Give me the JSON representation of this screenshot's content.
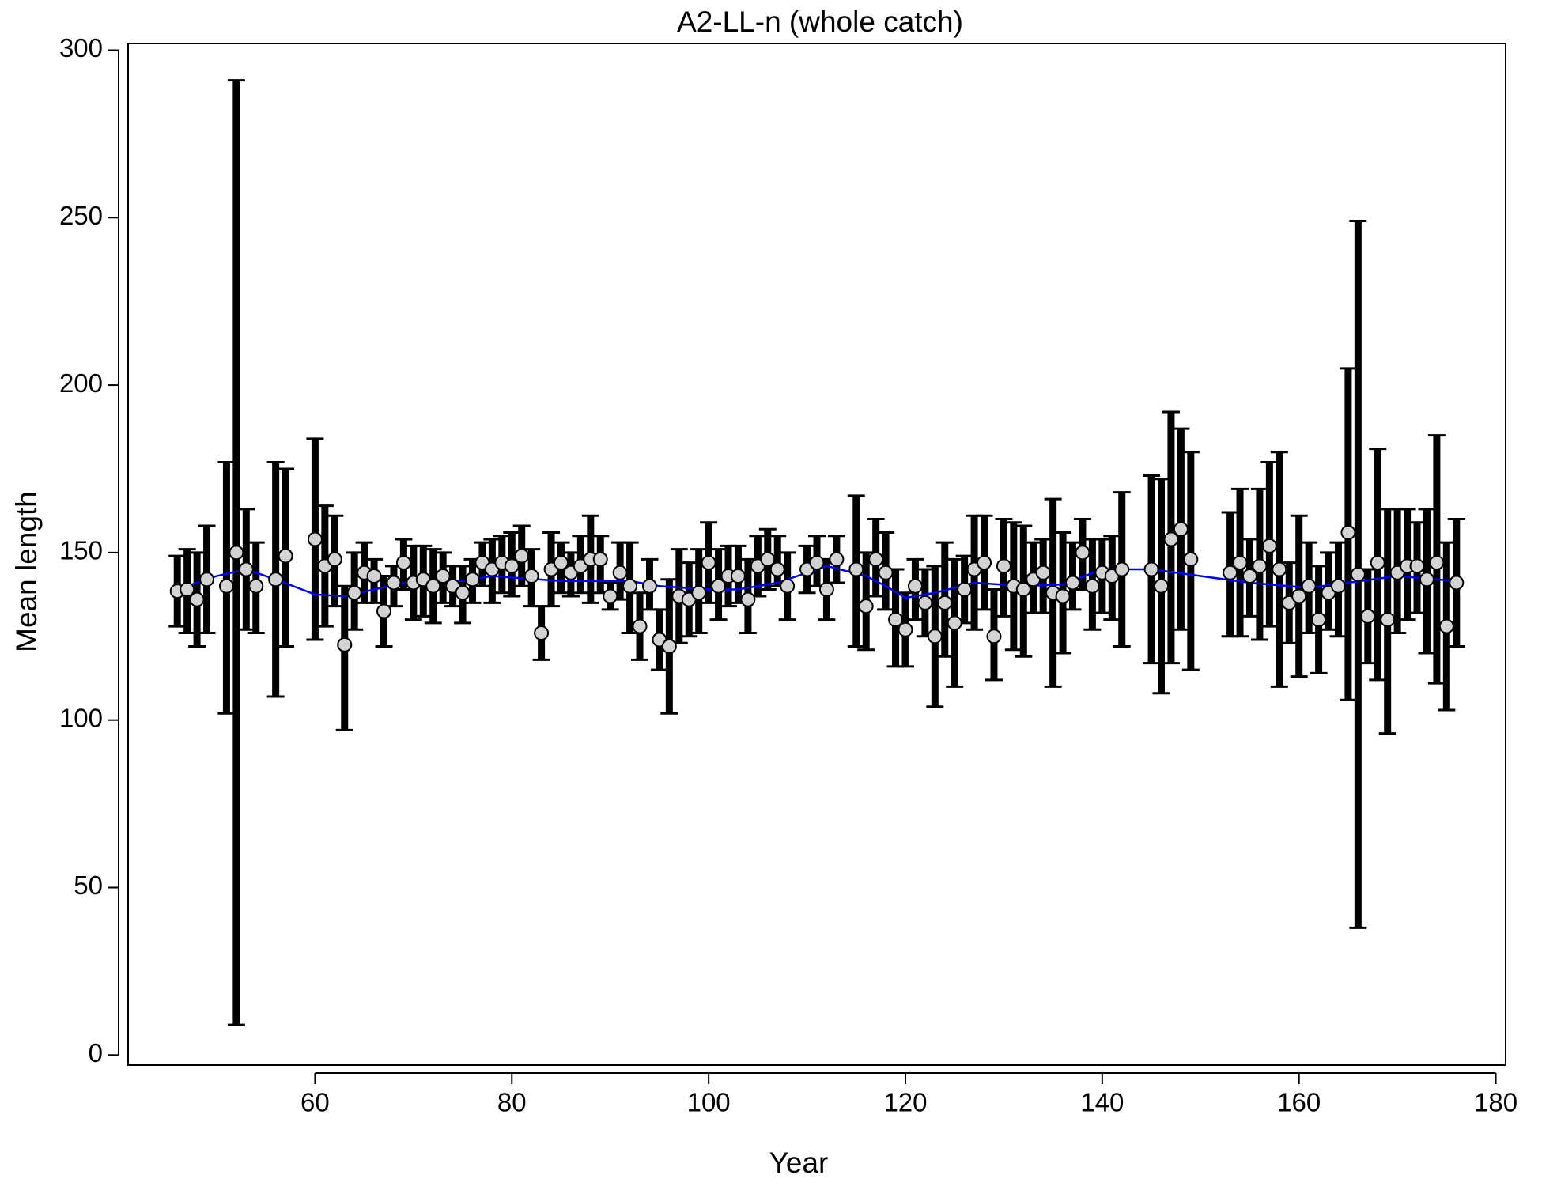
{
  "chart_data": {
    "type": "scatter",
    "title": "A2-LL-n (whole catch)",
    "x_label": "Year",
    "y_label": "Mean length",
    "xlim": [
      41,
      181
    ],
    "ylim": [
      -3,
      302
    ],
    "xticks": [
      60,
      80,
      100,
      120,
      140,
      160,
      180
    ],
    "yticks": [
      0,
      50,
      100,
      150,
      200,
      250,
      300
    ],
    "series": [
      {
        "color": "#d3d3d3",
        "x": [
          46,
          47,
          48,
          49,
          51,
          52,
          53,
          54,
          56,
          57,
          60,
          61,
          62,
          63,
          64,
          65,
          66,
          67,
          68,
          69,
          70,
          71,
          72,
          73,
          74,
          75,
          76,
          77,
          78,
          79,
          80,
          81,
          82,
          83,
          84,
          85,
          86,
          87,
          88,
          89,
          90,
          91,
          92,
          93,
          94,
          95,
          96,
          97,
          98,
          99,
          100,
          101,
          102,
          103,
          104,
          105,
          106,
          107,
          108,
          110,
          111,
          112,
          113,
          115,
          116,
          117,
          118,
          119,
          120,
          121,
          122,
          123,
          124,
          125,
          126,
          127,
          128,
          129,
          130,
          131,
          132,
          133,
          134,
          135,
          136,
          137,
          138,
          139,
          140,
          141,
          142,
          145,
          146,
          147,
          148,
          149,
          153,
          154,
          155,
          156,
          157,
          158,
          159,
          160,
          161,
          162,
          163,
          164,
          165,
          166,
          167,
          168,
          169,
          170,
          171,
          172,
          173,
          174,
          175,
          176
        ],
        "values": [
          138.5,
          139,
          136,
          142,
          140,
          150,
          145,
          140,
          142,
          149,
          154,
          146,
          148,
          122.5,
          138,
          144,
          143,
          132.5,
          141,
          147,
          141,
          142,
          140,
          143,
          140,
          138,
          142,
          147,
          145,
          147,
          146,
          149,
          143,
          126,
          145,
          147,
          144,
          146,
          148,
          148,
          137,
          144,
          140,
          128,
          140,
          124,
          122,
          137,
          136,
          138,
          147,
          140,
          143,
          143,
          136,
          146,
          148,
          145,
          140,
          145,
          147,
          139,
          148,
          145,
          134,
          148,
          144,
          130,
          127,
          140,
          135,
          125,
          135,
          129,
          139,
          145,
          147,
          125,
          146,
          140,
          139,
          142,
          144,
          138,
          137,
          141,
          150,
          140,
          144,
          143,
          145,
          145,
          140,
          154,
          157,
          148,
          144,
          147,
          143,
          146,
          152,
          145,
          135,
          137,
          140,
          130,
          138,
          140,
          156,
          143.5,
          131,
          147,
          130,
          144,
          146,
          146,
          142,
          147,
          128,
          141
        ],
        "lower": [
          128,
          126,
          122,
          126,
          102,
          9,
          127,
          126,
          107,
          122,
          124,
          128,
          134,
          97,
          127,
          135,
          135,
          122,
          134,
          139,
          130,
          131,
          129,
          135,
          134,
          129,
          135,
          140,
          135,
          138,
          137,
          140,
          134,
          118,
          134,
          138,
          137,
          138,
          135,
          138,
          133,
          136,
          126,
          118,
          133,
          115,
          102,
          123,
          125,
          126,
          135,
          130,
          134,
          135,
          126,
          137,
          139,
          140,
          130,
          138,
          140,
          130,
          141,
          122,
          121,
          137,
          133,
          116,
          116,
          130,
          125,
          104,
          119,
          110,
          129,
          127,
          133,
          112,
          131,
          121,
          119,
          132,
          132,
          110,
          120,
          133,
          139,
          127,
          132,
          130,
          122,
          117,
          108,
          117,
          127,
          115,
          125,
          125,
          131,
          124,
          128,
          110,
          123,
          113,
          126,
          114,
          127,
          125,
          106,
          38,
          117,
          112,
          96,
          126,
          130,
          132,
          120,
          111,
          103,
          122
        ],
        "upper": [
          149,
          151,
          150,
          158,
          177,
          291,
          163,
          153,
          177,
          175,
          184,
          164,
          161,
          140,
          150,
          153,
          148,
          143,
          146,
          154,
          152,
          152,
          151,
          150,
          146,
          146,
          148,
          153,
          154,
          155,
          156,
          158,
          151,
          134,
          156,
          153,
          150,
          155,
          161,
          155,
          141,
          153,
          153,
          138,
          148,
          133,
          142,
          151,
          147,
          151,
          159,
          151,
          152,
          152,
          148,
          155,
          157,
          155,
          150,
          152,
          155,
          148,
          155,
          167,
          150,
          160,
          156,
          145,
          138,
          148,
          145,
          146,
          153,
          148,
          149,
          161,
          161,
          139,
          160,
          159,
          158,
          153,
          154,
          166,
          156,
          153,
          160,
          154,
          154,
          155,
          168,
          173,
          172,
          192,
          187,
          180,
          162,
          169,
          154,
          169,
          177,
          180,
          147,
          161,
          153,
          146,
          150,
          153,
          205,
          249,
          145,
          181,
          163,
          163,
          163,
          159,
          163,
          185,
          153,
          160
        ]
      }
    ],
    "smooth": {
      "color": "#0000ff",
      "x": [
        46,
        50,
        53,
        56,
        60,
        63,
        66,
        70,
        75,
        78,
        85,
        92,
        95,
        100,
        103,
        107,
        112,
        116,
        118,
        120,
        123,
        127,
        132,
        136,
        140,
        145,
        150,
        155,
        161,
        165,
        170,
        176
      ],
      "values": [
        139,
        143,
        145,
        142,
        137.5,
        137,
        139,
        141.5,
        141.5,
        143,
        141.5,
        141.5,
        140,
        139,
        139,
        141,
        146,
        143,
        140,
        136.5,
        138,
        141,
        140,
        140.5,
        145,
        145,
        143,
        141,
        139.5,
        141,
        143,
        141.5
      ]
    }
  }
}
